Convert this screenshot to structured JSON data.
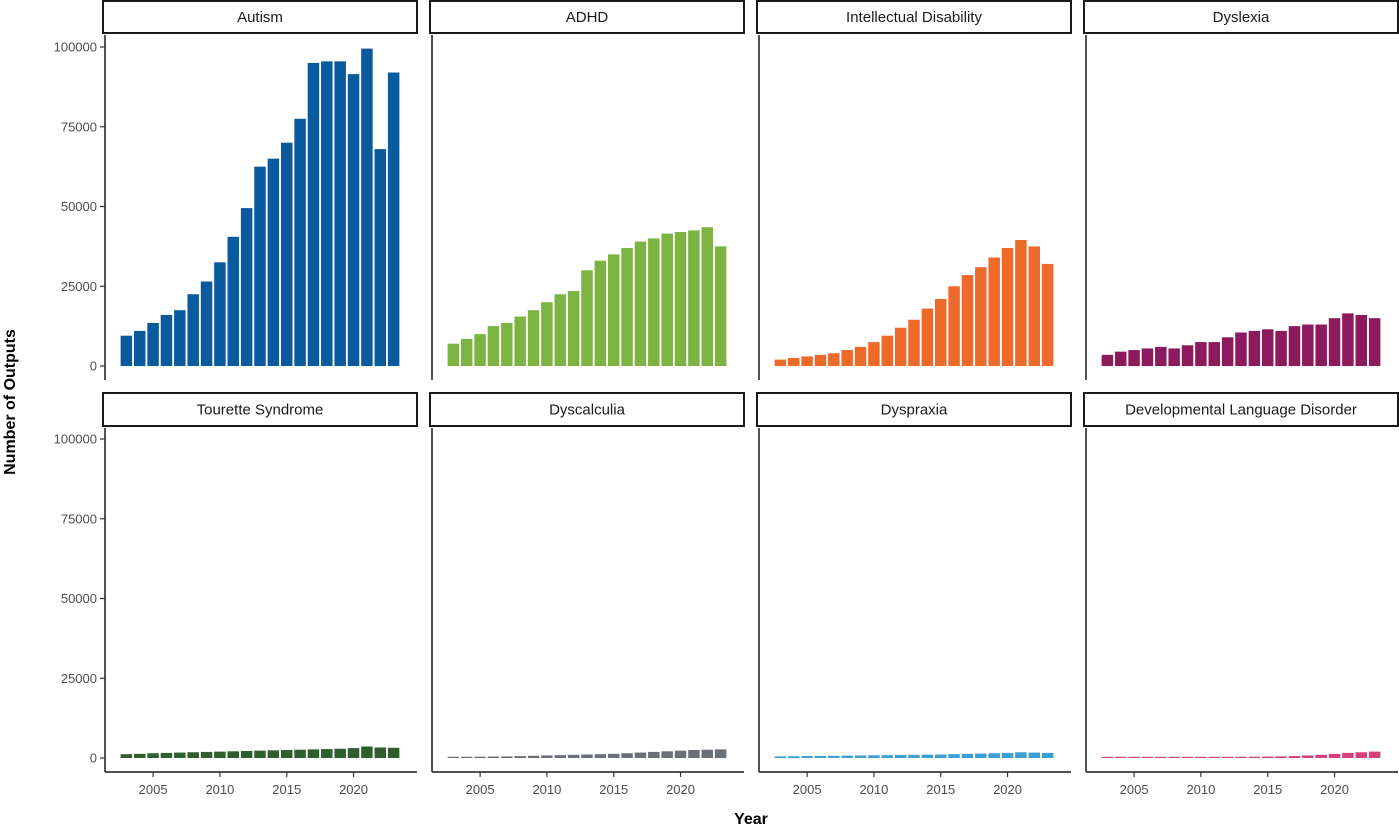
{
  "chart_data": {
    "type": "bar",
    "xlabel": "Year",
    "ylabel": "Number of Outputs",
    "ylim": [
      0,
      104000
    ],
    "yticks": [
      0,
      25000,
      50000,
      75000,
      100000
    ],
    "xticks": [
      2005,
      2010,
      2015,
      2020
    ],
    "xlim": [
      2002,
      2024
    ],
    "grid": false,
    "legend": "none",
    "years": [
      2003,
      2004,
      2005,
      2006,
      2007,
      2008,
      2009,
      2010,
      2011,
      2012,
      2013,
      2014,
      2015,
      2016,
      2017,
      2018,
      2019,
      2020,
      2021,
      2022,
      2023
    ],
    "series": [
      {
        "name": "Autism",
        "color": "#0a5a9e",
        "values": [
          9500,
          11000,
          13500,
          16000,
          17500,
          22500,
          26500,
          32500,
          40500,
          49500,
          62500,
          65000,
          70000,
          77500,
          95000,
          95500,
          95500,
          91500,
          99500,
          68000,
          92000
        ]
      },
      {
        "name": "ADHD",
        "color": "#7cb342",
        "values": [
          7000,
          8500,
          10000,
          12500,
          13500,
          15500,
          17500,
          20000,
          22500,
          23500,
          30000,
          33000,
          35000,
          37000,
          39000,
          40000,
          41500,
          42000,
          42500,
          43500,
          37500
        ]
      },
      {
        "name": "Intellectual Disability",
        "color": "#ee6a2b",
        "values": [
          2000,
          2500,
          3000,
          3500,
          4000,
          5000,
          6000,
          7500,
          9500,
          12000,
          14500,
          18000,
          21000,
          25000,
          28500,
          31000,
          34000,
          37000,
          39500,
          37500,
          32000
        ]
      },
      {
        "name": "Dyslexia",
        "color": "#8e1a5e",
        "values": [
          3500,
          4500,
          5000,
          5500,
          6000,
          5500,
          6500,
          7500,
          7500,
          9000,
          10500,
          11000,
          11500,
          11000,
          12500,
          13000,
          13000,
          15000,
          16500,
          16000,
          15000
        ]
      },
      {
        "name": "Tourette Syndrome",
        "color": "#2f5e2f",
        "values": [
          1200,
          1300,
          1500,
          1600,
          1700,
          1800,
          1900,
          2000,
          2100,
          2200,
          2300,
          2400,
          2500,
          2600,
          2700,
          2800,
          2900,
          3100,
          3600,
          3300,
          3200
        ]
      },
      {
        "name": "Dyscalculia",
        "color": "#6b7077",
        "values": [
          300,
          350,
          400,
          450,
          500,
          600,
          700,
          800,
          900,
          1000,
          1100,
          1200,
          1300,
          1500,
          1700,
          1900,
          2100,
          2300,
          2500,
          2600,
          2700
        ]
      },
      {
        "name": "Dyspraxia",
        "color": "#3a9fd6",
        "values": [
          500,
          550,
          600,
          650,
          700,
          750,
          800,
          850,
          900,
          950,
          1000,
          1050,
          1100,
          1200,
          1300,
          1400,
          1500,
          1600,
          1800,
          1700,
          1600
        ]
      },
      {
        "name": "Developmental Language Disorder",
        "color": "#d6407a",
        "values": [
          100,
          120,
          140,
          160,
          180,
          200,
          220,
          250,
          280,
          300,
          350,
          400,
          450,
          500,
          600,
          800,
          1000,
          1300,
          1600,
          1800,
          2000
        ]
      }
    ],
    "title": "",
    "layout_facets": "4 columns x 2 rows"
  }
}
